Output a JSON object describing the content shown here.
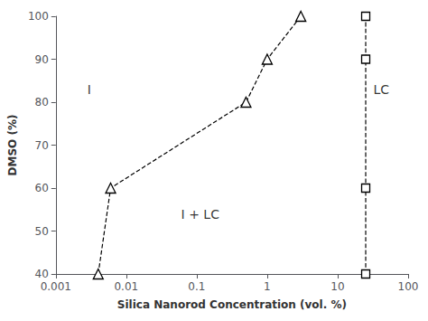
{
  "chart_data": {
    "type": "line",
    "xlabel": "Silica Nanorod Concentration (vol. %)",
    "ylabel": "DMSO (%)",
    "log": "x",
    "xlim": [
      0.001,
      100
    ],
    "ylim": [
      40,
      100
    ],
    "xticks": [
      0.001,
      0.01,
      0.1,
      1,
      10,
      100
    ],
    "yticks": [
      40,
      50,
      60,
      70,
      80,
      90,
      100
    ],
    "grid": false,
    "series": [
      {
        "x": [
          0.004,
          0.006,
          0.5,
          1.0,
          3.0
        ],
        "values": [
          40,
          60,
          80,
          90,
          100
        ],
        "color": "#000000",
        "marker": "triangle",
        "line_style": "dashed"
      },
      {
        "x": [
          25,
          25,
          25,
          25
        ],
        "values": [
          40,
          60,
          90,
          100
        ],
        "color": "#000000",
        "marker": "square",
        "line_style": "dashed"
      }
    ],
    "annotations": [
      {
        "text": "I",
        "x": 0.0028,
        "y": 83
      },
      {
        "text": "I + LC",
        "x": 0.06,
        "y": 54
      },
      {
        "text": "LC",
        "x": 32,
        "y": 83
      }
    ]
  }
}
